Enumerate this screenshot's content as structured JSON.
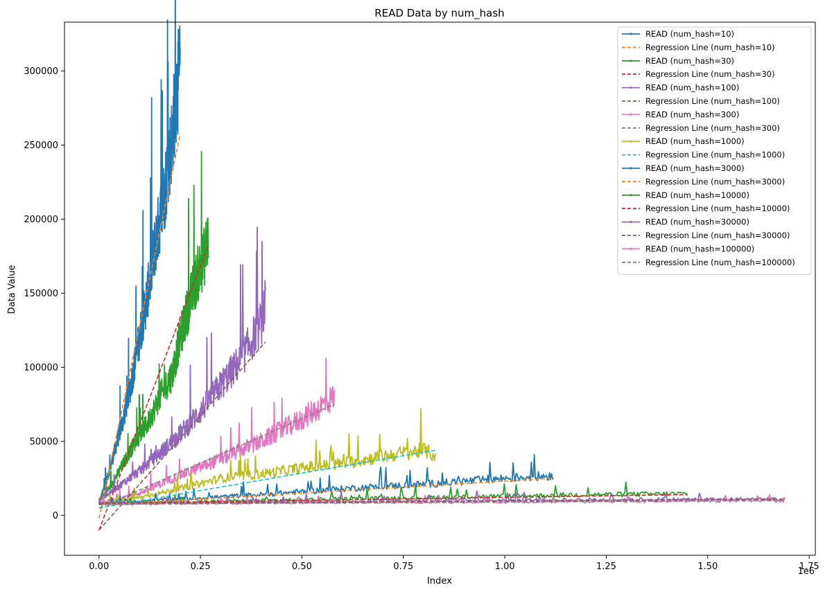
{
  "chart_data": {
    "type": "line",
    "title": "READ Data by num_hash",
    "xlabel": "Index",
    "ylabel": "Data Value",
    "x_offset_label": "1e6",
    "xlim": [
      -0.085,
      1.765
    ],
    "ylim": [
      -27000,
      333000
    ],
    "x_ticks": [
      0.0,
      0.25,
      0.5,
      0.75,
      1.0,
      1.25,
      1.5,
      1.75
    ],
    "x_tick_labels": [
      "0.00",
      "0.25",
      "0.50",
      "0.75",
      "1.00",
      "1.25",
      "1.50",
      "1.75"
    ],
    "y_ticks": [
      0,
      50000,
      100000,
      150000,
      200000,
      250000,
      300000
    ],
    "y_tick_labels": [
      "0",
      "50000",
      "100000",
      "150000",
      "200000",
      "250000",
      "300000"
    ],
    "grid": false,
    "legend_position": "top-right",
    "series": [
      {
        "name": "READ (num_hash=10)",
        "style": "solid",
        "color": "#1f77b4",
        "x": [
          0.0,
          0.02,
          0.04,
          0.06,
          0.08,
          0.1,
          0.12,
          0.14,
          0.16,
          0.18,
          0.19,
          0.2
        ],
        "y": [
          8000,
          25000,
          45000,
          65000,
          90000,
          120000,
          150000,
          185000,
          215000,
          255000,
          285000,
          300000
        ]
      },
      {
        "name": "Regression Line (num_hash=10)",
        "style": "dashed",
        "color": "#ff7f0e",
        "x": [
          0.0,
          0.2
        ],
        "y": [
          -2000,
          257000
        ]
      },
      {
        "name": "READ (num_hash=30)",
        "style": "solid",
        "color": "#2ca02c",
        "x": [
          0.0,
          0.03,
          0.06,
          0.09,
          0.12,
          0.15,
          0.18,
          0.2,
          0.22,
          0.24,
          0.26,
          0.27
        ],
        "y": [
          10000,
          20000,
          35000,
          50000,
          62000,
          80000,
          95000,
          120000,
          140000,
          160000,
          175000,
          190000
        ]
      },
      {
        "name": "Regression Line (num_hash=30)",
        "style": "dashed",
        "color": "#d62728",
        "x": [
          0.0,
          0.27
        ],
        "y": [
          -10000,
          183000
        ]
      },
      {
        "name": "READ (num_hash=100)",
        "style": "solid",
        "color": "#9467bd",
        "x": [
          0.0,
          0.05,
          0.1,
          0.15,
          0.2,
          0.25,
          0.3,
          0.35,
          0.4,
          0.41
        ],
        "y": [
          10000,
          20000,
          30000,
          42000,
          55000,
          70000,
          88000,
          105000,
          130000,
          143000
        ]
      },
      {
        "name": "Regression Line (num_hash=100)",
        "style": "dashed",
        "color": "#8c564b",
        "x": [
          0.0,
          0.41
        ],
        "y": [
          -10000,
          117000
        ]
      },
      {
        "name": "READ (num_hash=300)",
        "style": "solid",
        "color": "#e377c2",
        "x": [
          0.0,
          0.1,
          0.2,
          0.3,
          0.4,
          0.5,
          0.58
        ],
        "y": [
          8000,
          15000,
          27000,
          38000,
          50000,
          65000,
          80000
        ]
      },
      {
        "name": "Regression Line (num_hash=300)",
        "style": "dashed",
        "color": "#7f7f7f",
        "x": [
          0.0,
          0.58
        ],
        "y": [
          5000,
          75000
        ]
      },
      {
        "name": "READ (num_hash=1000)",
        "style": "solid",
        "color": "#bcbd22",
        "x": [
          0.0,
          0.1,
          0.2,
          0.3,
          0.4,
          0.5,
          0.6,
          0.7,
          0.8,
          0.83
        ],
        "y": [
          8000,
          12000,
          18000,
          25000,
          28000,
          32000,
          35000,
          40000,
          44000,
          40000
        ]
      },
      {
        "name": "Regression Line (num_hash=1000)",
        "style": "dashed",
        "color": "#17becf",
        "x": [
          0.0,
          0.83
        ],
        "y": [
          5000,
          44000
        ]
      },
      {
        "name": "READ (num_hash=3000)",
        "style": "solid",
        "color": "#1f77b4",
        "x": [
          0.0,
          0.2,
          0.4,
          0.6,
          0.8,
          1.0,
          1.12
        ],
        "y": [
          8000,
          11000,
          14000,
          18000,
          21000,
          25000,
          27000
        ]
      },
      {
        "name": "Regression Line (num_hash=3000)",
        "style": "dashed",
        "color": "#ff7f0e",
        "x": [
          0.0,
          1.12
        ],
        "y": [
          7000,
          25000
        ]
      },
      {
        "name": "READ (num_hash=10000)",
        "style": "solid",
        "color": "#2ca02c",
        "x": [
          0.0,
          0.3,
          0.6,
          0.9,
          1.2,
          1.45
        ],
        "y": [
          8000,
          9500,
          11000,
          12500,
          14000,
          14500
        ]
      },
      {
        "name": "Regression Line (num_hash=10000)",
        "style": "dashed",
        "color": "#d62728",
        "x": [
          0.0,
          1.45
        ],
        "y": [
          8000,
          14000
        ]
      },
      {
        "name": "READ (num_hash=30000)",
        "style": "solid",
        "color": "#9467bd",
        "x": [
          0.0,
          0.4,
          0.8,
          1.2,
          1.69
        ],
        "y": [
          8000,
          9000,
          10000,
          10500,
          11000
        ]
      },
      {
        "name": "Regression Line (num_hash=30000)",
        "style": "dashed",
        "color": "#8c564b",
        "x": [
          0.0,
          1.69
        ],
        "y": [
          8000,
          11000
        ]
      },
      {
        "name": "READ (num_hash=100000)",
        "style": "solid",
        "color": "#e377c2",
        "x": [
          0.0,
          0.4,
          0.8,
          1.2,
          1.69
        ],
        "y": [
          7500,
          8500,
          9000,
          9500,
          10000
        ]
      },
      {
        "name": "Regression Line (num_hash=100000)",
        "style": "dashed",
        "color": "#7f7f7f",
        "x": [
          0.0,
          1.69
        ],
        "y": [
          7500,
          10000
        ]
      }
    ]
  }
}
